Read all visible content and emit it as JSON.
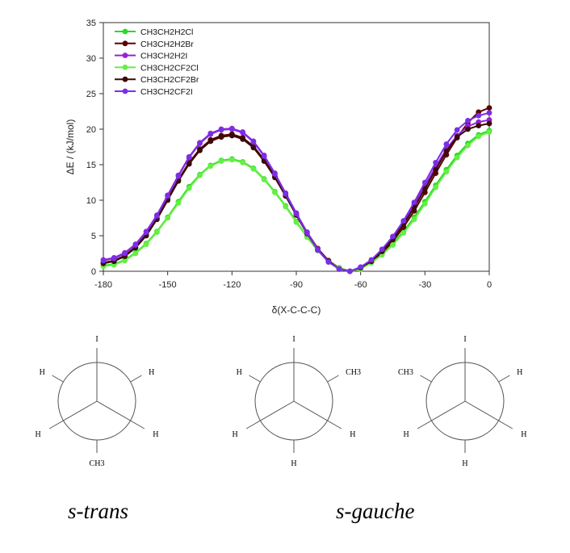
{
  "chart_data": {
    "type": "line",
    "xlabel": "δ(X-C-C-C)",
    "ylabel": "ΔE / (kJ/mol)",
    "xlim": [
      -180,
      0
    ],
    "ylim": [
      0,
      35
    ],
    "xticks": [
      -180,
      -150,
      -120,
      -90,
      -60,
      -30,
      0
    ],
    "yticks": [
      0,
      5,
      10,
      15,
      20,
      25,
      30,
      35
    ],
    "legend_position": "top-left",
    "x": [
      -180,
      -175,
      -170,
      -165,
      -160,
      -155,
      -150,
      -145,
      -140,
      -135,
      -130,
      -125,
      -120,
      -115,
      -110,
      -105,
      -100,
      -95,
      -90,
      -85,
      -80,
      -75,
      -70,
      -65,
      -60,
      -55,
      -50,
      -45,
      -40,
      -35,
      -30,
      -25,
      -20,
      -15,
      -10,
      -5,
      0
    ],
    "series": [
      {
        "name": "CH3CH2H2Cl",
        "color": "#22dd22",
        "values": [
          0.8,
          1.0,
          1.6,
          2.6,
          3.9,
          5.6,
          7.6,
          9.8,
          11.9,
          13.6,
          14.9,
          15.6,
          15.8,
          15.4,
          14.5,
          13.0,
          11.2,
          9.2,
          7.0,
          4.9,
          3.0,
          1.5,
          0.5,
          0.0,
          0.4,
          1.3,
          2.5,
          3.9,
          5.6,
          7.6,
          9.8,
          12.1,
          14.3,
          16.3,
          18.0,
          19.2,
          19.8
        ]
      },
      {
        "name": "CH3CH2H2Br",
        "color": "#5c0000",
        "values": [
          1.2,
          1.5,
          2.2,
          3.4,
          5.2,
          7.5,
          10.2,
          12.9,
          15.3,
          17.2,
          18.5,
          19.1,
          19.3,
          18.8,
          17.6,
          15.7,
          13.4,
          10.8,
          8.1,
          5.5,
          3.2,
          1.5,
          0.4,
          0.0,
          0.4,
          1.3,
          2.6,
          4.2,
          6.2,
          8.5,
          11.1,
          13.8,
          16.4,
          18.8,
          20.9,
          22.4,
          23.0
        ]
      },
      {
        "name": "CH3CH2H2I",
        "color": "#9a1fd6",
        "values": [
          1.6,
          1.9,
          2.6,
          3.8,
          5.6,
          7.9,
          10.7,
          13.5,
          16.1,
          18.1,
          19.4,
          20.0,
          20.1,
          19.6,
          18.3,
          16.3,
          13.8,
          11.0,
          8.2,
          5.5,
          3.1,
          1.4,
          0.4,
          0.0,
          0.5,
          1.5,
          3.0,
          4.8,
          6.9,
          9.4,
          12.0,
          14.7,
          17.2,
          19.1,
          20.4,
          21.0,
          21.3
        ]
      },
      {
        "name": "CH3CH2CF2Cl",
        "color": "#66ee44",
        "values": [
          0.7,
          0.9,
          1.5,
          2.5,
          3.8,
          5.5,
          7.5,
          9.6,
          11.7,
          13.5,
          14.8,
          15.5,
          15.7,
          15.3,
          14.4,
          12.9,
          11.1,
          9.1,
          6.9,
          4.8,
          2.9,
          1.4,
          0.4,
          0.0,
          0.3,
          1.2,
          2.3,
          3.7,
          5.4,
          7.3,
          9.5,
          11.8,
          14.0,
          16.0,
          17.7,
          19.0,
          19.6
        ]
      },
      {
        "name": "CH3CH2CF2Br",
        "color": "#3a0a0a",
        "values": [
          1.1,
          1.4,
          2.1,
          3.3,
          5.0,
          7.3,
          10.0,
          12.7,
          15.1,
          17.0,
          18.3,
          18.9,
          19.1,
          18.6,
          17.4,
          15.5,
          13.2,
          10.6,
          7.9,
          5.3,
          3.0,
          1.4,
          0.3,
          0.0,
          0.5,
          1.4,
          2.8,
          4.5,
          6.6,
          9.0,
          11.6,
          14.3,
          16.9,
          18.9,
          20.0,
          20.5,
          20.8
        ]
      },
      {
        "name": "CH3CH2CF2I",
        "color": "#7a2ee8",
        "values": [
          1.5,
          1.8,
          2.5,
          3.7,
          5.5,
          7.8,
          10.6,
          13.4,
          16.0,
          18.0,
          19.3,
          19.9,
          20.0,
          19.5,
          18.2,
          16.2,
          13.7,
          10.9,
          8.1,
          5.4,
          3.0,
          1.3,
          0.3,
          0.0,
          0.6,
          1.6,
          3.1,
          4.9,
          7.1,
          9.7,
          12.5,
          15.3,
          17.9,
          19.9,
          21.2,
          21.9,
          22.3
        ]
      }
    ]
  },
  "newman": {
    "trans": {
      "front_top": "I",
      "back_upper_left": "H",
      "back_upper_right": "H",
      "front_lower_left": "H",
      "front_lower_right": "H",
      "back_bottom": "CH3"
    },
    "gauche1": {
      "front_top": "I",
      "back_upper_left": "H",
      "back_upper_right": "CH3",
      "front_lower_left": "H",
      "front_lower_right": "H",
      "back_bottom": "H"
    },
    "gauche2": {
      "front_top": "I",
      "back_upper_left": "CH3",
      "back_upper_right": "H",
      "front_lower_left": "H",
      "front_lower_right": "H",
      "back_bottom": "H"
    }
  },
  "captions": {
    "trans": "s-trans",
    "gauche": "s-gauche"
  }
}
